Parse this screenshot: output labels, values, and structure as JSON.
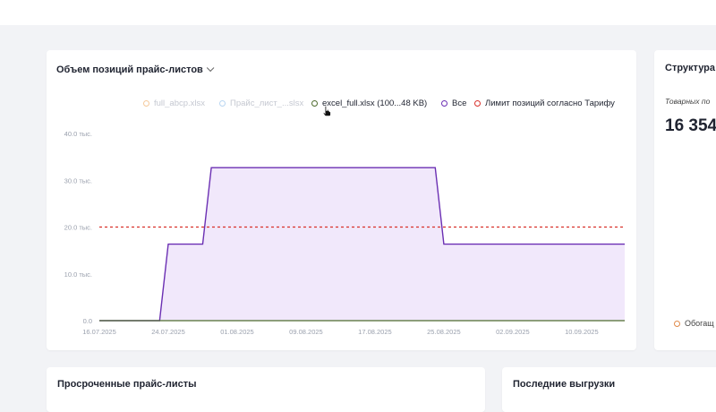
{
  "volume_card": {
    "title": "Объем позиций прайс-листов",
    "legend": [
      {
        "label": "full_abcp.xlsx",
        "color": "#f5c99b",
        "dimmed": true
      },
      {
        "label": "Прайс_лист_...slsx",
        "color": "#b9d6f2",
        "dimmed": true
      },
      {
        "label": "excel_full.xlsx (100...48 KB)",
        "color": "#4e6b2e",
        "dimmed": false
      },
      {
        "label": "Все",
        "color": "#6b2fb3",
        "dimmed": false
      },
      {
        "label": "Лимит позиций согласно Тарифу",
        "color": "#d9312b",
        "dimmed": false
      }
    ]
  },
  "chart_data": {
    "type": "area",
    "title": "Объем позиций прайс-листов",
    "x_ticks": [
      "16.07.2025",
      "24.07.2025",
      "01.08.2025",
      "09.08.2025",
      "17.08.2025",
      "25.08.2025",
      "02.09.2025",
      "10.09.2025"
    ],
    "y_ticks": [
      "0.0",
      "10.0 тыс.",
      "20.0 тыс.",
      "30.0 тыс.",
      "40.0 тыс."
    ],
    "y_tick_values": [
      0,
      10000,
      20000,
      30000,
      40000
    ],
    "ylim": [
      0,
      40000
    ],
    "x_domain": [
      "16.07.2025",
      "15.09.2025"
    ],
    "series": [
      {
        "name": "Все",
        "color": "#6b2fb3",
        "fill": "#f1e8fb",
        "points": [
          [
            "16.07.2025",
            0
          ],
          [
            "23.07.2025",
            0
          ],
          [
            "24.07.2025",
            16354
          ],
          [
            "28.07.2025",
            16354
          ],
          [
            "29.07.2025",
            32700
          ],
          [
            "24.08.2025",
            32700
          ],
          [
            "25.08.2025",
            16354
          ],
          [
            "15.09.2025",
            16354
          ]
        ]
      },
      {
        "name": "excel_full.xlsx (100...48 KB)",
        "color": "#4e6b2e",
        "points": [
          [
            "16.07.2025",
            0
          ],
          [
            "15.09.2025",
            0
          ]
        ]
      },
      {
        "name": "Лимит позиций согласно Тарифу",
        "color": "#d9312b",
        "dashed": true,
        "points": [
          [
            "16.07.2025",
            20000
          ],
          [
            "15.09.2025",
            20000
          ]
        ]
      }
    ]
  },
  "structure_card": {
    "title": "Структура",
    "subtitle": "Товарных по",
    "value": "16 354",
    "legend_label": "Обогащ",
    "legend_color": "#e08a4a"
  },
  "overdue_card": {
    "title": "Просроченные прайс-листы"
  },
  "exports_card": {
    "title": "Последние выгрузки"
  }
}
